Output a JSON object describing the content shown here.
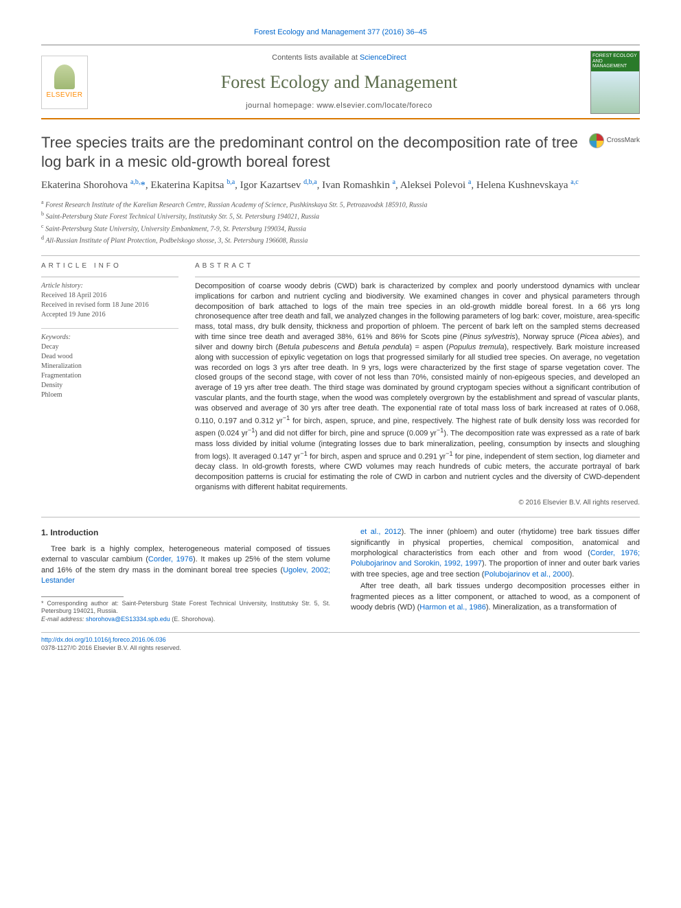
{
  "citation": "Forest Ecology and Management 377 (2016) 36–45",
  "masthead": {
    "contents_prefix": "Contents lists available at ",
    "contents_link": "ScienceDirect",
    "journal_name": "Forest Ecology and Management",
    "homepage_label": "journal homepage: www.elsevier.com/locate/foreco",
    "publisher_logo_text": "ELSEVIER",
    "cover_title": "FOREST ECOLOGY AND MANAGEMENT"
  },
  "crossmark_label": "CrossMark",
  "title": "Tree species traits are the predominant control on the decomposition rate of tree log bark in a mesic old-growth boreal forest",
  "authors_html": "Ekaterina Shorohova <sup>a,b,</sup><span class='star'>*</span>, Ekaterina Kapitsa <sup>b,a</sup>, Igor Kazartsev <sup>d,b,a</sup>, Ivan Romashkin <sup>a</sup>, Aleksei Polevoi <sup>a</sup>, Helena Kushnevskaya <sup>a,c</sup>",
  "affiliations": [
    "a Forest Research Institute of the Karelian Research Centre, Russian Academy of Science, Pushkinskaya Str. 5, Petrozavodsk 185910, Russia",
    "b Saint-Petersburg State Forest Technical University, Institutsky Str. 5, St. Petersburg 194021, Russia",
    "c Saint-Petersburg State University, University Embankment, 7-9, St. Petersburg 199034, Russia",
    "d All-Russian Institute of Plant Protection, Podbelskogo shosse, 3, St. Petersburg 196608, Russia"
  ],
  "article_info": {
    "heading": "ARTICLE INFO",
    "history_label": "Article history:",
    "received": "Received 18 April 2016",
    "revised": "Received in revised form 18 June 2016",
    "accepted": "Accepted 19 June 2016",
    "keywords_label": "Keywords:",
    "keywords": [
      "Decay",
      "Dead wood",
      "Mineralization",
      "Fragmentation",
      "Density",
      "Phloem"
    ]
  },
  "abstract": {
    "heading": "ABSTRACT",
    "text_html": "Decomposition of coarse woody debris (CWD) bark is characterized by complex and poorly understood dynamics with unclear implications for carbon and nutrient cycling and biodiversity. We examined changes in cover and physical parameters through decomposition of bark attached to logs of the main tree species in an old-growth middle boreal forest. In a 66 yrs long chronosequence after tree death and fall, we analyzed changes in the following parameters of log bark: cover, moisture, area-specific mass, total mass, dry bulk density, thickness and proportion of phloem. The percent of bark left on the sampled stems decreased with time since tree death and averaged 38%, 61% and 86% for Scots pine (<i>Pinus sylvestris</i>), Norway spruce (<i>Picea abies</i>), and silver and downy birch (<i>Betula pubescens</i> and <i>Betula pendula</i>) = aspen (<i>Populus tremula</i>), respectively. Bark moisture increased along with succession of epixylic vegetation on logs that progressed similarly for all studied tree species. On average, no vegetation was recorded on logs 3 yrs after tree death. In 9 yrs, logs were characterized by the first stage of sparse vegetation cover. The closed groups of the second stage, with cover of not less than 70%, consisted mainly of non-epigeous species, and developed an average of 19 yrs after tree death. The third stage was dominated by ground cryptogam species without a significant contribution of vascular plants, and the fourth stage, when the wood was completely overgrown by the establishment and spread of vascular plants, was observed and average of 30 yrs after tree death. The exponential rate of total mass loss of bark increased at rates of 0.068, 0.110, 0.197 and 0.312 yr<sup>−1</sup> for birch, aspen, spruce, and pine, respectively. The highest rate of bulk density loss was recorded for aspen (0.024 yr<sup>−1</sup>) and did not differ for birch, pine and spruce (0.009 yr<sup>−1</sup>). The decomposition rate was expressed as a rate of bark mass loss divided by initial volume (integrating losses due to bark mineralization, peeling, consumption by insects and sloughing from logs). It averaged 0.147 yr<sup>−1</sup> for birch, aspen and spruce and 0.291 yr<sup>−1</sup> for pine, independent of stem section, log diameter and decay class. In old-growth forests, where CWD volumes may reach hundreds of cubic meters, the accurate portrayal of bark decomposition patterns is crucial for estimating the role of CWD in carbon and nutrient cycles and the diversity of CWD-dependent organisms with different habitat requirements.",
    "copyright": "© 2016 Elsevier B.V. All rights reserved."
  },
  "body": {
    "intro_heading": "1. Introduction",
    "col1_html": "Tree bark is a highly complex, heterogeneous material composed of tissues external to vascular cambium (<a class='ref'>Corder, 1976</a>). It makes up 25% of the stem volume and 16% of the stem dry mass in the dominant boreal tree species (<a class='ref'>Ugolev, 2002; Lestander</a>",
    "col2_html": "<a class='ref'>et al., 2012</a>). The inner (phloem) and outer (rhytidome) tree bark tissues differ significantly in physical properties, chemical composition, anatomical and morphological characteristics from each other and from wood (<a class='ref'>Corder, 1976; Polubojarinov and Sorokin, 1992, 1997</a>). The proportion of inner and outer bark varies with tree species, age and tree section (<a class='ref'>Polubojarinov et al., 2000</a>).</p><p>After tree death, all bark tissues undergo decomposition processes either in fragmented pieces as a litter component, or attached to wood, as a component of woody debris (WD) (<a class='ref'>Harmon et al., 1986</a>). Mineralization, as a transformation of"
  },
  "footnote": {
    "corr_html": "* Corresponding author at: Saint-Petersburg State Forest Technical University, Institutsky Str. 5, St. Petersburg 194021, Russia.",
    "email_label": "E-mail address:",
    "email": "shorohova@ES13334.spb.edu",
    "email_author": "(E. Shorohova)."
  },
  "bottom": {
    "doi": "http://dx.doi.org/10.1016/j.foreco.2016.06.036",
    "issn_line": "0378-1127/© 2016 Elsevier B.V. All rights reserved."
  },
  "colors": {
    "accent_orange": "#d97800",
    "link_blue": "#0066cc",
    "journal_green": "#5a6b4a"
  }
}
